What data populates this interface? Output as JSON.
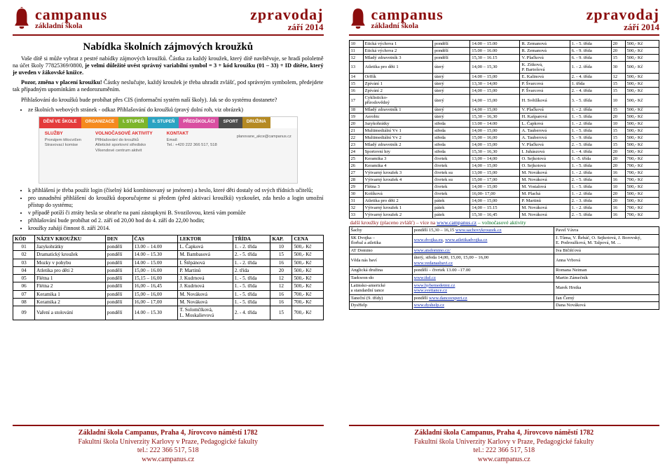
{
  "header": {
    "brand": "campanus",
    "sub": "základní škola",
    "r1": "zpravodaj",
    "r2": "září 2014"
  },
  "left": {
    "title": "Nabídka školních zájmových kroužků",
    "p1a": "Vaše dítě si může vybrat z pestré nabídky zájmových kroužků. Částka za každý kroužek, který dítě navštěvuje, se hradí pololetně na účet školy 77825369/0800, ",
    "p1b": "je velmi důležité uvést správný variabilní symbol = 3 + kód kroužku (01 – 33) + ID dítěte, který je uveden v žákovské knížce.",
    "p2a": "Pozor, změna v placení kroužku! ",
    "p2b": "Částky neslučujte, každý kroužek je třeba uhradit zvlášť, pod správným symbolem, předejdete tak případným upomínkám a nedorozuměním.",
    "p3a": "Přihlašování do kroužků bude probíhat přes CIS (informační systém naší školy). Jak se do systému dostanete?",
    "p3b_pre": "ze školních webových stránek - odkaz ",
    "p3b_bold": "Přihlašování do kroužků (pravý dolní roh, viz obrázek)",
    "ss": {
      "tabs": [
        "DĚNÍ VE ŠKOLE",
        "ORGANIZACE",
        "I. STUPEŇ",
        "II. STUPEŇ",
        "PŘEDŠKOLÁCI",
        "SPORT",
        "DRUŽINA"
      ],
      "tab_colors": [
        "#e43b3b",
        "#f58a1f",
        "#7db52a",
        "#2aa3c2",
        "#d94fa1",
        "#4d4d4d",
        "#b58a24"
      ],
      "h1": "SLUŽBY",
      "h2": "VOLNOČASOVÉ AKTIVITY",
      "h3": "KONTAKT",
      "c1": "Pronájem tělocvičen\nStravovací komise",
      "c2": "Přihlašování do kroužků\nAtletické sportovní středisko\nVíkendové centrum aktivit",
      "c3a": "Email:",
      "c3b": "Tel.: +420 222 366 517, 518",
      "side": "planovane_akce@campanus.cz"
    },
    "b1": "k přihlášení je třeba použít login (číselný kód kombinovaný se jménem) a heslo, které děti dostaly od svých třídních učitelů;",
    "b2": "pro usnadnění přihlášení do kroužků doporučujeme si předem (před aktivací kroužků) vyzkoušet, zda heslo a login umožní přístup do systému;",
    "b3": "v případě potíží či ztráty hesla se obraťte na paní zástupkyni B. Svozilovou, která vám pomůže",
    "b4": "přihlašování bude probíhat od 2. září od 20,00 hod do 4. září do 22,00 hodin;",
    "b5": "kroužky zahájí činnost 8. září 2014.",
    "thead": [
      "KÓD",
      "NÁZEV KROUŽKU",
      "DEN",
      "ČAS",
      "LEKTOR",
      "TŘÍDA",
      "KAP.",
      "CENA"
    ],
    "rows": [
      [
        "01",
        "Jazykohrátky",
        "pondělí",
        "13.00 – 14.00",
        "L. Čapková",
        "1. - 2. třída",
        "10",
        "500,- Kč"
      ],
      [
        "02",
        "Dramatický kroužek",
        "pondělí",
        "14.00 – 15.30",
        "M. Bambasová",
        "2. - 5. třída",
        "15",
        "500,- Kč"
      ],
      [
        "03",
        "Mozky v pohybu",
        "pondělí",
        "14.00 – 15.00",
        "I. Štěpánová",
        "1. - 2. třída",
        "16",
        "500,- Kč"
      ],
      [
        "04",
        "Atletika pro děti 2",
        "pondělí",
        "15,00 – 16.00",
        "P. Martinů",
        "2. třída",
        "20",
        "500,- Kč"
      ],
      [
        "05",
        "Flétna 1",
        "pondělí",
        "15,15 – 16,00",
        "J. Kudrnová",
        "1. - 5. třída",
        "12",
        "500,- Kč"
      ],
      [
        "06",
        "Flétna 2",
        "pondělí",
        "16,00 – 16,45",
        "J. Kudrnová",
        "1. - 5. třída",
        "12",
        "500,- Kč"
      ],
      [
        "07",
        "Keramika 1",
        "pondělí",
        "15,00 – 16,00",
        "M. Nováková",
        "1. - 5. třída",
        "16",
        "700,- Kč"
      ],
      [
        "08",
        "Keramika 2",
        "pondělí",
        "16,00 – 17,00",
        "M. Nováková",
        "1. - 5. třída",
        "16",
        "700,- Kč"
      ],
      [
        "09",
        "Vaření a stolování",
        "pondělí",
        "14.00 – 15.30",
        "T. Solomčíková,\nL. Moskalievová",
        "2. - 4. třída",
        "15",
        "700,- Kč"
      ]
    ]
  },
  "right": {
    "rows": [
      [
        "10",
        "Etická výchova 1",
        "pondělí",
        "14.00 – 15.00",
        "R. Zemanová",
        "1. - 5. třída",
        "20",
        "500,- Kč"
      ],
      [
        "11",
        "Etická výchova 2",
        "pondělí",
        "15.00 – 16.00",
        "R. Zemanová",
        "6. - 9. třída",
        "20",
        "500,- Kč"
      ],
      [
        "12",
        "Mladý zdravotník 3",
        "pondělí",
        "15,30 – 16.15",
        "V. Plačková",
        "6. - 9. třída",
        "15",
        "500,- Kč"
      ],
      [
        "13",
        "Atletika pro děti 1",
        "úterý",
        "14,00 – 15,30",
        "K. Zítková,\nP. Bartošová",
        "1. - 2. třída",
        "30",
        "500,- Kč"
      ],
      [
        "14",
        "Orffík",
        "úterý",
        "14.00 – 15,00",
        "E. Kalinová",
        "2. - 4. třída",
        "12",
        "500,- Kč"
      ],
      [
        "15",
        "Zpívání 1",
        "úterý",
        "13,30 – 14,00",
        "P. Švarcová",
        "1. třída",
        "15",
        "500,- Kč"
      ],
      [
        "16",
        "Zpívání 2",
        "úterý",
        "14,00 – 15,00",
        "P. Švarcová",
        "2. - 4. třída",
        "15",
        "500,- Kč"
      ],
      [
        "17",
        "Cyklisticko-\npřírodovědný",
        "úterý",
        "14,00 – 15,00",
        "H. Světlíková",
        "3. - 5. třída",
        "10",
        "500,- Kč"
      ],
      [
        "18",
        "Mladý zdravotník 1",
        "úterý",
        "14,00 – 15,00",
        "V. Plačková",
        "1. - 2. třída",
        "15",
        "500,- Kč"
      ],
      [
        "19",
        "Aerobic",
        "úterý",
        "15,30 – 16,30",
        "H. Kašparová",
        "1. - 5. třída",
        "20",
        "500,- Kč"
      ],
      [
        "20",
        "Jazykohrátky",
        "středa",
        "13.00 – 14.00",
        "L. Čapková",
        "1. - 2. třída",
        "10",
        "500,- Kč"
      ],
      [
        "21",
        "Multimediální Vv 1",
        "středa",
        "14,00 – 15,00",
        "A. Tauberová",
        "1. - 5. třída",
        "15",
        "500,- Kč"
      ],
      [
        "22",
        "Multimediální Vv 2",
        "středa",
        "15,00 – 16,00",
        "A. Tauberová",
        "5. - 9. třída",
        "15",
        "500,- Kč"
      ],
      [
        "23",
        "Mladý zdravotník 2",
        "středa",
        "14,00 – 15,00",
        "V. Plačková",
        "2. - 5. třída",
        "15",
        "500,- Kč"
      ],
      [
        "24",
        "Sportovní hry",
        "středa",
        "15,30 – 16,30",
        "I. Juhászová",
        "1. - 4. třída",
        "20",
        "500,- Kč"
      ],
      [
        "25",
        "Keramika 3",
        "čtvrtek",
        "13,00 – 14,00",
        "O. Sejkotová",
        "1. -5. třída",
        "20",
        "700,- Kč"
      ],
      [
        "26",
        "Keramika 4",
        "čtvrtek",
        "14,00 – 15,00",
        "O. Sejkotová",
        "1. - 5. třída",
        "20",
        "700,- Kč"
      ],
      [
        "27",
        "Výtvarný kroužek 3",
        "čtvrtek su",
        "13,00 – 15,00",
        "M. Nováková",
        "1. - 2. třída",
        "16",
        "700,- Kč"
      ],
      [
        "28",
        "Výtvarný kroužek 4",
        "čtvrtek su",
        "15,00 – 17,00",
        "M. Nováková",
        "2. - 5. třída",
        "16",
        "700,- Kč"
      ],
      [
        "29",
        "Flétna 3",
        "čtvrtek",
        "14,00 – 15,00",
        "M. Vostalová",
        "1. - 5. třída",
        "10",
        "500,- Kč"
      ],
      [
        "30",
        "Košíková",
        "čtvrtek",
        "16,00- 17,00",
        "M. Plachá",
        "1. - 2. třída",
        "20",
        "500,- Kč"
      ],
      [
        "31",
        "Atletika pro děti 2",
        "pátek",
        "14,00 – 15,00",
        "P. Martinů",
        "2. - 3. třída",
        "20",
        "500,- Kč"
      ],
      [
        "32",
        "Výtvarný kroužek 1",
        "pátek",
        "14,00 – 15.15",
        "M. Nováková",
        "1. - 2. třída",
        "16",
        "700,- Kč"
      ],
      [
        "33",
        "Výtvarný kroužek 2",
        "pátek",
        "15,30 – 16,45",
        "M. Nováková",
        "2. - 5. třída",
        "16",
        "700,- Kč"
      ]
    ],
    "extra_head_a": "další kroužky (placeno zvlášť) – více na ",
    "extra_head_link": "www.campanus.cz",
    "extra_head_b": " – volnočasové aktivity",
    "extras": [
      [
        "Šachy",
        "pondělí 15,30 – 16,15 www.sachovykrouzek.cz",
        "Pavel Vávra"
      ],
      [
        "SK Dvojka –\nflorbal a atletika",
        "www.dvojka.eu, www.atletikadvojka.cz",
        "J. Tůma, V. Řeháč, O. Sejkotová, J. Borovský,\nE. Podroužková, M. Talpová, M. ..."
      ],
      [
        "AT Domino",
        "www.atsdomino.cz/",
        "Iva Bičišťová"
      ],
      [
        "Věda nás baví",
        "úterý, středa 14,00, 15,00, 15,00 – 16,00\nwww.vedanasbavi.cz",
        "Anna Vrbová"
      ],
      [
        "Anglická družina",
        "pondělí – čtvrtek 13.00 –17.00",
        "Romana Neiman"
      ],
      [
        "Taekwon-do",
        "www.tkd.cz",
        "Martin Zámečník"
      ],
      [
        "Latinsko-americké\na standardní tance",
        "www.hybemedetmi.cz\nwww.svettance.cz",
        "Marek Hrstka"
      ],
      [
        "Taneční (9. třídy)",
        "pondělí www.danceexpert.cz",
        "Jan Černý"
      ],
      [
        "DysHelp",
        "www.dyshelp.cz",
        "Dana Nováková"
      ]
    ]
  },
  "footer": {
    "l1": "Základní škola Campanus, Praha 4, Jírovcovo náměstí 1782",
    "l2": "Fakultní škola Univerzity Karlovy v Praze, Pedagogické fakulty",
    "l3": "tel.: 222 366 517, 518",
    "l4": "www.campanus.cz"
  }
}
